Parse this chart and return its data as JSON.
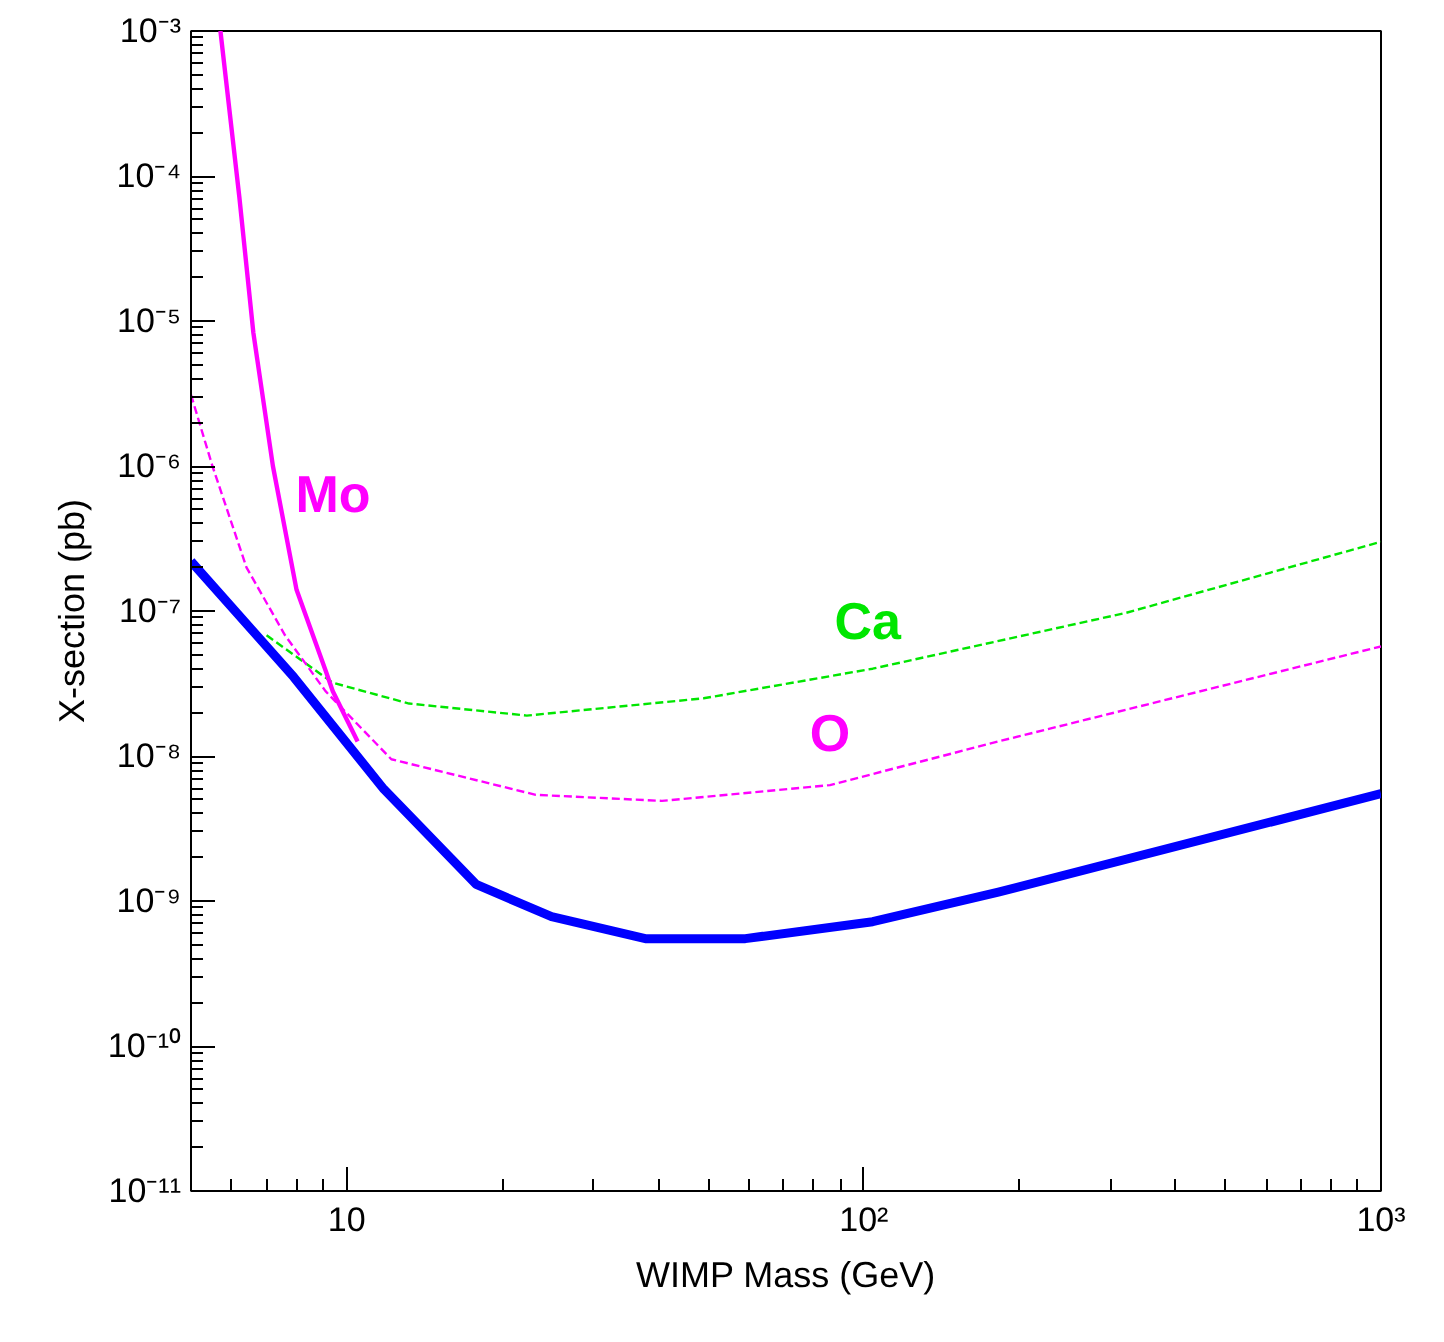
{
  "chart_data": {
    "type": "line",
    "xlabel": "WIMP Mass (GeV)",
    "ylabel": "X-section (pb)",
    "log": "xy",
    "xlim": [
      5,
      1000
    ],
    "ylim": [
      1e-11,
      0.001
    ],
    "xticks": [
      {
        "value": 10,
        "label": "10"
      },
      {
        "value": 100,
        "label": "10²"
      },
      {
        "value": 1000,
        "label": "10³"
      }
    ],
    "yticks": [
      {
        "value": 1e-11,
        "label": "10⁻¹¹"
      },
      {
        "value": 1e-10,
        "label": "10⁻¹⁰"
      },
      {
        "value": 1e-09,
        "label": "10⁻⁹"
      },
      {
        "value": 1e-08,
        "label": "10⁻⁸"
      },
      {
        "value": 1e-07,
        "label": "10⁻⁷"
      },
      {
        "value": 1e-06,
        "label": "10⁻⁶"
      },
      {
        "value": 1e-05,
        "label": "10⁻⁵"
      },
      {
        "value": 0.0001,
        "label": "10⁻⁴"
      },
      {
        "value": 0.001,
        "label": "10⁻³"
      }
    ],
    "grid": false,
    "series": [
      {
        "name": "Ca",
        "color": "#00e600",
        "line_style": "dashed",
        "x": [
          7.0,
          9.4,
          13.2,
          22.3,
          49,
          104,
          321,
          1000
        ],
        "values": [
          6.8e-08,
          3.2e-08,
          2.3e-08,
          1.9e-08,
          2.5e-08,
          4e-08,
          9.7e-08,
          3e-07
        ]
      },
      {
        "name": "O",
        "color": "#ff00ff",
        "line_style": "dashed",
        "x": [
          5,
          5.5,
          6.4,
          7.6,
          9.1,
          12.2,
          23.2,
          40.7,
          86,
          182,
          1000
        ],
        "values": [
          3.1e-06,
          1e-06,
          2e-07,
          6.8e-08,
          2.8e-08,
          9.5e-09,
          5.4e-09,
          4.9e-09,
          6.3e-09,
          1.26e-08,
          5.7e-08
        ]
      },
      {
        "name": "Mo",
        "color": "#ff00ff",
        "line_style": "solid",
        "x": [
          5.7,
          6.2,
          6.6,
          7.2,
          8.0,
          9.1,
          9.4,
          10.5
        ],
        "values": [
          0.001,
          7.2e-05,
          8.3e-06,
          1e-06,
          1.4e-07,
          3.9e-08,
          2.8e-08,
          1.26e-08
        ]
      },
      {
        "color": "#0000ff",
        "line_style": "solid",
        "x": [
          5,
          7.9,
          11.8,
          17.8,
          24.9,
          37.8,
          59,
          104,
          182,
          1000
        ],
        "values": [
          2.2e-07,
          3.5e-08,
          5.9e-09,
          1.3e-09,
          7.8e-10,
          5.5e-10,
          5.5e-10,
          7.2e-10,
          1.15e-09,
          5.5e-09
        ]
      }
    ]
  }
}
